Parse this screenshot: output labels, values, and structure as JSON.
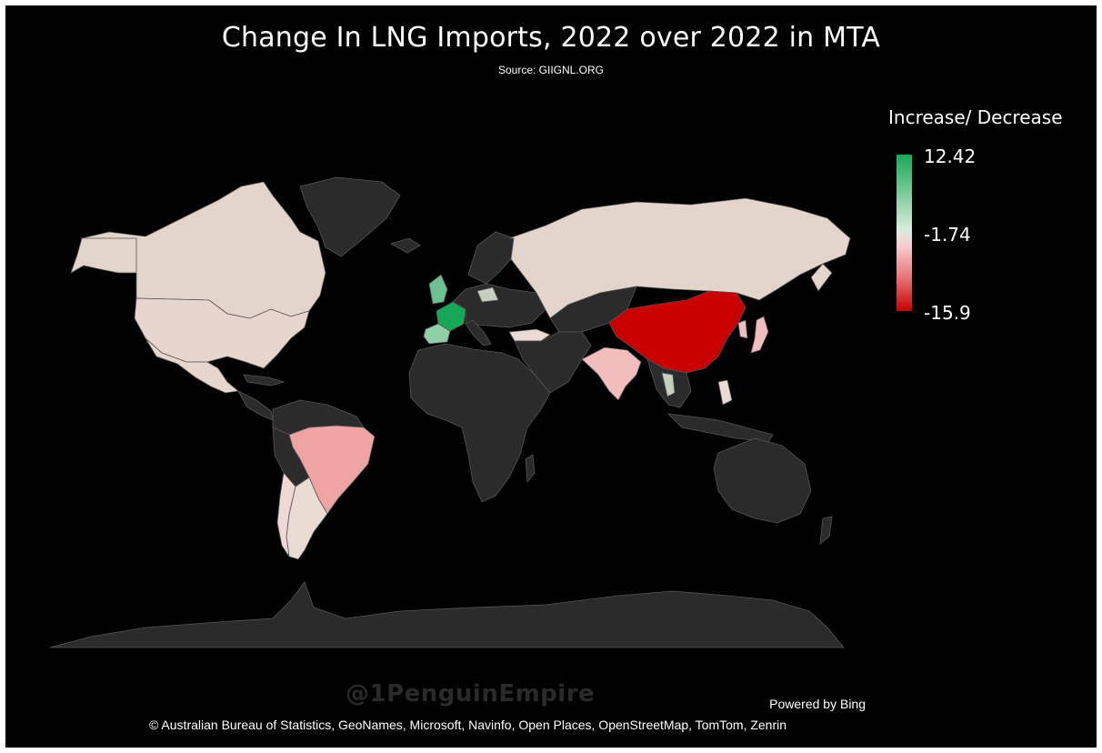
{
  "title": "Change In LNG Imports, 2022 over 2022 in MTA",
  "subtitle": "Source: GIIGNL.ORG",
  "legend": {
    "title": "Increase/ Decrease",
    "max_label": "12.42",
    "mid_label": "-1.74",
    "min_label": "-15.9",
    "max_value": 12.42,
    "mid_value": -1.74,
    "min_value": -15.9,
    "colors": {
      "max": "#16a955",
      "mid": "#f2d6d8",
      "min": "#c80000",
      "no_data": "#2b2b2b"
    }
  },
  "map_data": {
    "highlighted_regions": [
      {
        "name": "China",
        "level": "min"
      },
      {
        "name": "France",
        "level": "max"
      },
      {
        "name": "Spain",
        "level": "increase"
      },
      {
        "name": "United Kingdom",
        "level": "increase"
      },
      {
        "name": "Brazil",
        "level": "decrease"
      },
      {
        "name": "India",
        "level": "slight-decrease"
      },
      {
        "name": "Japan",
        "level": "slight-decrease"
      },
      {
        "name": "Russia",
        "level": "neutral"
      },
      {
        "name": "United States",
        "level": "neutral"
      },
      {
        "name": "Canada",
        "level": "neutral"
      },
      {
        "name": "Chile",
        "level": "neutral"
      }
    ]
  },
  "watermark": "@1PenguinEmpire",
  "powered_by": "Powered by Bing",
  "credits": "© Australian Bureau of Statistics, GeoNames, Microsoft, Navinfo, Open Places, OpenStreetMap, TomTom, Zenrin"
}
